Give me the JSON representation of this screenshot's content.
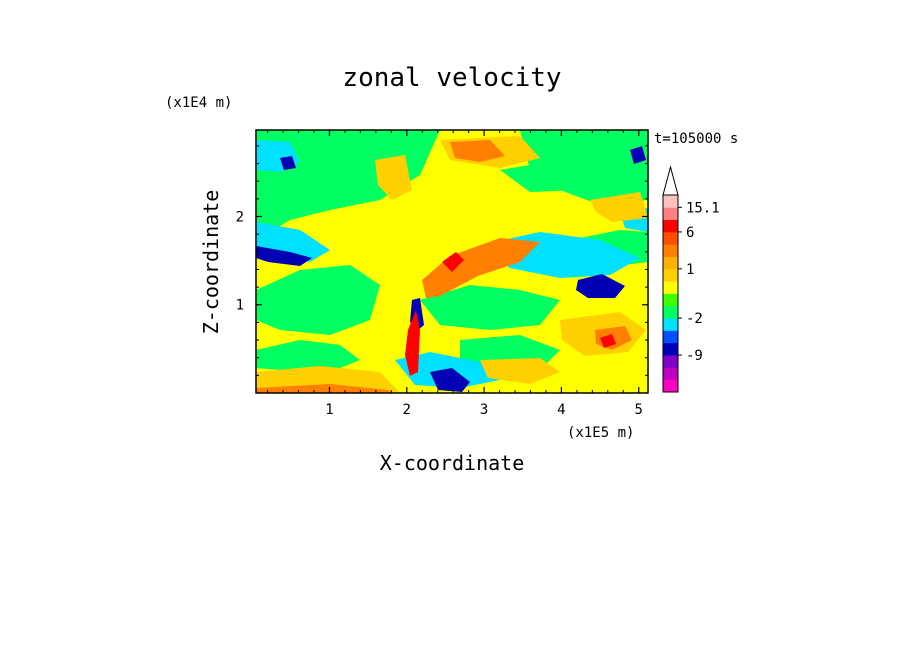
{
  "chart_data": {
    "type": "heatmap",
    "title": "zonal velocity",
    "xlabel": "X-coordinate",
    "ylabel": "Z-coordinate",
    "x_unit": "(x1E5 m)",
    "y_unit": "(x1E4 m)",
    "time_label": "t=105000 s",
    "xlim": [
      0.05,
      5.12
    ],
    "ylim": [
      0.0,
      2.98
    ],
    "x_ticks": [
      "1",
      "2",
      "3",
      "4",
      "5"
    ],
    "x_tick_values": [
      1,
      2,
      3,
      4,
      5
    ],
    "y_ticks": [
      "1",
      "2"
    ],
    "y_tick_values": [
      1,
      2
    ],
    "colorbar": {
      "levels_bottom_to_top": [
        {
          "color": "#ff00c0"
        },
        {
          "color": "#c000c0"
        },
        {
          "color": "#8000c8"
        },
        {
          "color": "#0000b4"
        },
        {
          "color": "#0050ff"
        },
        {
          "color": "#00e0ff"
        },
        {
          "color": "#00ff60"
        },
        {
          "color": "#40ff00"
        },
        {
          "color": "#ffff00"
        },
        {
          "color": "#ffd000"
        },
        {
          "color": "#ffb000"
        },
        {
          "color": "#ff8000"
        },
        {
          "color": "#ff5000"
        },
        {
          "color": "#ff0000"
        },
        {
          "color": "#ff8080"
        },
        {
          "color": "#ffc0c0"
        }
      ],
      "tick_labels": [
        "15.1",
        "6",
        "1",
        "-2",
        "-9"
      ],
      "tick_level_boundaries": [
        15,
        13,
        10,
        6,
        3
      ],
      "extend_max": true
    },
    "colors": {
      "strong_negative": "#0000b4",
      "negative": "#00e0ff",
      "weak_negative": "#00ff60",
      "near_zero": "#ffff00",
      "weak_positive": "#ffd000",
      "positive": "#ff8000",
      "strong_positive": "#ff0000"
    }
  }
}
